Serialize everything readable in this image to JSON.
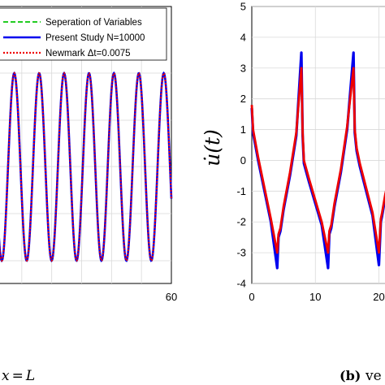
{
  "chart_data": [
    {
      "type": "line",
      "xlim": [
        0,
        60
      ],
      "x_tick_labels": [
        "60"
      ],
      "grid": true,
      "legend_position": "top-left",
      "caption": "x = L",
      "oscillation": {
        "period": 8.33,
        "crest_phase": 40.8,
        "mid": 0,
        "amplitude": 1
      },
      "series": [
        {
          "name": "Seperation of Variables",
          "color": "#22cc22",
          "style": "dashed"
        },
        {
          "name": "Present Study N=10000",
          "color": "#0000ee",
          "style": "solid"
        },
        {
          "name": "Newmark Δt=0.0075",
          "color": "#ee0000",
          "style": "dotted"
        }
      ]
    },
    {
      "type": "line",
      "xlim": [
        0,
        23
      ],
      "ylim": [
        -4,
        5
      ],
      "y_ticks": [
        "5",
        "4",
        "3",
        "2",
        "1",
        "0",
        "-1",
        "-2",
        "-3",
        "-4"
      ],
      "x_tick_labels": [
        "0",
        "10",
        "20"
      ],
      "ylabel": "u̇(t)",
      "grid": true,
      "caption_prefix": "(b)",
      "caption_text": "ve",
      "series": [
        {
          "name": "Present Study N=10000",
          "color": "#0000ee",
          "x": [
            0,
            0.2,
            1,
            2,
            3,
            4,
            4.2,
            4.5,
            5,
            6,
            7,
            7.8,
            8,
            8.2,
            9,
            10,
            11,
            12,
            12.2,
            12.5,
            13,
            14,
            15,
            16,
            16.2,
            16.5,
            17,
            18,
            19,
            20,
            20.3,
            20.5,
            21,
            22,
            23
          ],
          "y": [
            1.7,
            0.9,
            0.0,
            -1.0,
            -2.0,
            -3.5,
            -2.5,
            -2.3,
            -1.6,
            -0.5,
            0.8,
            3.5,
            0.8,
            -0.1,
            -0.7,
            -1.4,
            -2.1,
            -3.5,
            -2.4,
            -2.2,
            -1.5,
            -0.4,
            1.0,
            3.5,
            0.9,
            0.3,
            -0.2,
            -1.0,
            -1.8,
            -3.4,
            -2.0,
            -1.8,
            -1.2,
            -0.3,
            0.3
          ]
        },
        {
          "name": "Newmark Δt=0.0075",
          "color": "#ee0000",
          "x": [
            0,
            0.2,
            1,
            2,
            3,
            4,
            4.2,
            4.5,
            5,
            6,
            7,
            7.8,
            8,
            8.2,
            9,
            10,
            11,
            12,
            12.2,
            12.5,
            13,
            14,
            15,
            16,
            16.2,
            16.5,
            17,
            18,
            19,
            20,
            20.3,
            20.5,
            21,
            22,
            23
          ],
          "y": [
            1.8,
            1.0,
            0.1,
            -0.9,
            -1.9,
            -3.0,
            -2.4,
            -2.2,
            -1.5,
            -0.4,
            0.9,
            3.0,
            0.9,
            0.0,
            -0.6,
            -1.3,
            -2.0,
            -3.0,
            -2.3,
            -2.1,
            -1.4,
            -0.3,
            1.1,
            3.0,
            1.0,
            0.4,
            -0.1,
            -0.9,
            -1.7,
            -3.0,
            -1.9,
            -1.7,
            -1.1,
            -0.2,
            0.4
          ]
        }
      ]
    }
  ]
}
